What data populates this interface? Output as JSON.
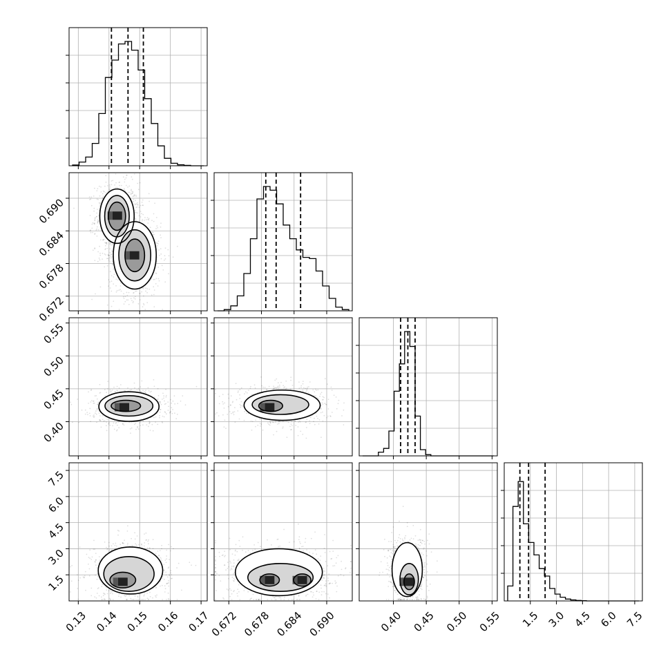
{
  "chart_data": {
    "type": "corner",
    "grid": true,
    "parameters": [
      {
        "range": [
          0.127,
          0.172
        ],
        "ticks": [
          0.13,
          0.14,
          0.15,
          0.16,
          0.17
        ],
        "tick_labels": [
          "0.13",
          "0.14",
          "0.15",
          "0.16",
          "0.17"
        ],
        "quantiles": [
          0.1408,
          0.1462,
          0.1512
        ],
        "mean": 0.146,
        "sd": 0.004
      },
      {
        "range": [
          0.6693,
          0.6947
        ],
        "ticks": [
          0.672,
          0.678,
          0.684,
          0.69
        ],
        "tick_labels": [
          "0.672",
          "0.678",
          "0.684",
          "0.690"
        ],
        "quantiles": [
          0.6788,
          0.6807,
          0.6852
        ],
        "mean": 0.681,
        "sd": 0.004
      },
      {
        "range": [
          0.348,
          0.558
        ],
        "ticks": [
          0.4,
          0.45,
          0.5,
          0.55
        ],
        "tick_labels": [
          "0.40",
          "0.45",
          "0.50",
          "0.55"
        ],
        "quantiles": [
          0.411,
          0.422,
          0.433
        ],
        "mean": 0.422,
        "sd": 0.012
      },
      {
        "range": [
          0.0,
          7.94
        ],
        "ticks": [
          1.5,
          3.0,
          4.5,
          6.0,
          7.5
        ],
        "tick_labels": [
          "1.5",
          "3.0",
          "4.5",
          "6.0",
          "7.5"
        ],
        "quantiles": [
          0.9,
          1.4,
          2.35
        ],
        "mean": 1.6,
        "sd": 0.7
      }
    ],
    "histograms": [
      {
        "param": 0,
        "counts": [
          0.006,
          0.03,
          0.07,
          0.18,
          0.42,
          0.71,
          0.85,
          0.98,
          1.0,
          0.93,
          0.77,
          0.54,
          0.34,
          0.16,
          0.06,
          0.02,
          0.008,
          0.003,
          0.0,
          0.0
        ]
      },
      {
        "param": 1,
        "counts": [
          0.0,
          0.01,
          0.04,
          0.12,
          0.3,
          0.58,
          0.9,
          1.0,
          0.97,
          0.86,
          0.69,
          0.58,
          0.49,
          0.43,
          0.42,
          0.32,
          0.2,
          0.1,
          0.03,
          0.01
        ]
      },
      {
        "param": 2,
        "counts": [
          0.0,
          0.0,
          0.0,
          0.03,
          0.06,
          0.2,
          0.52,
          0.74,
          1.0,
          0.88,
          0.32,
          0.05,
          0.01,
          0.0,
          0.0,
          0.0,
          0.0,
          0.0,
          0.0,
          0.0,
          0.0,
          0.0,
          0.0,
          0.0,
          0.0
        ]
      },
      {
        "param": 3,
        "counts": [
          0.12,
          0.76,
          0.96,
          0.62,
          0.47,
          0.37,
          0.26,
          0.2,
          0.1,
          0.055,
          0.03,
          0.015,
          0.008,
          0.004,
          0.002,
          0.0,
          0.0,
          0.0,
          0.0,
          0.0,
          0.0,
          0.0,
          0.0,
          0.0,
          0.0
        ]
      }
    ],
    "pair_panels": [
      {
        "row": 1,
        "col": 0,
        "peaks": [
          [
            0.1427,
            0.6868
          ],
          [
            0.1483,
            0.6795
          ]
        ],
        "contours": [
          {
            "level": "inner",
            "ellipses": [
              {
                "cx": 0.1426,
                "cy": 0.6867,
                "rx": 0.0028,
                "ry": 0.0026
              },
              {
                "cx": 0.1484,
                "cy": 0.6795,
                "rx": 0.0032,
                "ry": 0.003
              }
            ]
          },
          {
            "level": "mid",
            "ellipses": [
              {
                "cx": 0.1426,
                "cy": 0.6867,
                "rx": 0.004,
                "ry": 0.0038
              },
              {
                "cx": 0.1484,
                "cy": 0.6795,
                "rx": 0.0052,
                "ry": 0.0047
              }
            ]
          },
          {
            "level": "outer",
            "ellipses": [
              {
                "cx": 0.1426,
                "cy": 0.6867,
                "rx": 0.0056,
                "ry": 0.005
              },
              {
                "cx": 0.1484,
                "cy": 0.6795,
                "rx": 0.007,
                "ry": 0.0062
              }
            ]
          }
        ]
      },
      {
        "row": 2,
        "col": 0,
        "peaks": [
          [
            0.145,
            0.422
          ]
        ],
        "contours": [
          {
            "level": "inner",
            "ellipses": [
              {
                "cx": 0.1455,
                "cy": 0.424,
                "rx": 0.0048,
                "ry": 0.0085
              }
            ]
          },
          {
            "level": "mid",
            "ellipses": [
              {
                "cx": 0.1465,
                "cy": 0.424,
                "rx": 0.0078,
                "ry": 0.0155
              }
            ]
          },
          {
            "level": "outer",
            "ellipses": [
              {
                "cx": 0.1465,
                "cy": 0.423,
                "rx": 0.0098,
                "ry": 0.0225
              }
            ]
          }
        ]
      },
      {
        "row": 2,
        "col": 1,
        "peaks": [
          [
            0.6795,
            0.422
          ]
        ],
        "contours": [
          {
            "level": "inner",
            "ellipses": [
              {
                "cx": 0.6797,
                "cy": 0.424,
                "rx": 0.0022,
                "ry": 0.0085
              }
            ]
          },
          {
            "level": "mid",
            "ellipses": [
              {
                "cx": 0.6815,
                "cy": 0.426,
                "rx": 0.0052,
                "ry": 0.015
              }
            ]
          },
          {
            "level": "outer",
            "ellipses": [
              {
                "cx": 0.6818,
                "cy": 0.425,
                "rx": 0.007,
                "ry": 0.023
              }
            ]
          }
        ]
      },
      {
        "row": 3,
        "col": 0,
        "peaks": [
          [
            0.1445,
            1.1
          ]
        ],
        "contours": [
          {
            "level": "inner",
            "ellipses": [
              {
                "cx": 0.1445,
                "cy": 1.2,
                "rx": 0.0042,
                "ry": 0.45
              }
            ]
          },
          {
            "level": "mid",
            "ellipses": [
              {
                "cx": 0.1465,
                "cy": 1.55,
                "rx": 0.0082,
                "ry": 1.0
              }
            ]
          },
          {
            "level": "outer",
            "ellipses": [
              {
                "cx": 0.147,
                "cy": 1.75,
                "rx": 0.0105,
                "ry": 1.35
              }
            ]
          }
        ]
      },
      {
        "row": 3,
        "col": 1,
        "peaks": [
          [
            0.6795,
            1.2
          ],
          [
            0.6855,
            1.2
          ]
        ],
        "contours": [
          {
            "level": "inner",
            "ellipses": [
              {
                "cx": 0.6795,
                "cy": 1.2,
                "rx": 0.0018,
                "ry": 0.35
              },
              {
                "cx": 0.6855,
                "cy": 1.2,
                "rx": 0.0016,
                "ry": 0.35
              }
            ]
          },
          {
            "level": "mid",
            "ellipses": [
              {
                "cx": 0.6815,
                "cy": 1.35,
                "rx": 0.006,
                "ry": 0.8
              }
            ]
          },
          {
            "level": "outer",
            "ellipses": [
              {
                "cx": 0.6812,
                "cy": 1.65,
                "rx": 0.008,
                "ry": 1.35
              }
            ]
          }
        ]
      },
      {
        "row": 3,
        "col": 2,
        "peaks": [
          [
            0.424,
            1.1
          ]
        ],
        "contours": [
          {
            "level": "inner",
            "ellipses": [
              {
                "cx": 0.424,
                "cy": 1.1,
                "rx": 0.008,
                "ry": 0.45
              }
            ]
          },
          {
            "level": "mid",
            "ellipses": [
              {
                "cx": 0.424,
                "cy": 1.25,
                "rx": 0.014,
                "ry": 0.9
              }
            ]
          },
          {
            "level": "outer",
            "ellipses": [
              {
                "cx": 0.421,
                "cy": 1.8,
                "rx": 0.023,
                "ry": 1.55
              }
            ]
          }
        ]
      }
    ]
  }
}
